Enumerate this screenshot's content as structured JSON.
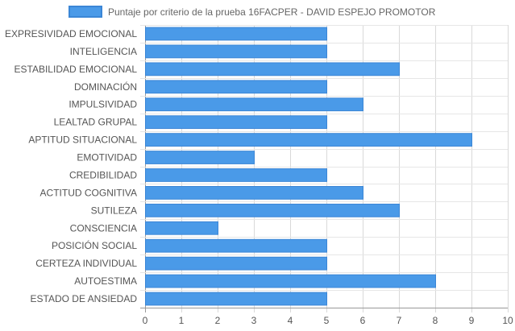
{
  "chart_data": {
    "type": "bar",
    "orientation": "horizontal",
    "categories": [
      "EXPRESIVIDAD EMOCIONAL",
      "INTELIGENCIA",
      "ESTABILIDAD EMOCIONAL",
      "DOMINACIÓN",
      "IMPULSIVIDAD",
      "LEALTAD GRUPAL",
      "APTITUD SITUACIONAL",
      "EMOTIVIDAD",
      "CREDIBILIDAD",
      "ACTITUD COGNITIVA",
      "SUTILEZA",
      "CONSCIENCIA",
      "POSICIÓN SOCIAL",
      "CERTEZA INDIVIDUAL",
      "AUTOESTIMA",
      "ESTADO DE ANSIEDAD"
    ],
    "series": [
      {
        "name": "Puntaje por criterio de la prueba 16FACPER - DAVID ESPEJO PROMOTOR",
        "values": [
          5,
          5,
          7,
          5,
          6,
          5,
          9,
          3,
          5,
          6,
          7,
          2,
          5,
          5,
          8,
          5
        ],
        "color": "#4a9ae8",
        "border_color": "#3b86d6"
      }
    ],
    "xlim": [
      0,
      10
    ],
    "x_ticks": [
      "0",
      "1",
      "2",
      "3",
      "4",
      "5",
      "6",
      "7",
      "8",
      "9",
      "10"
    ],
    "grid": true,
    "legend_position": "top"
  }
}
